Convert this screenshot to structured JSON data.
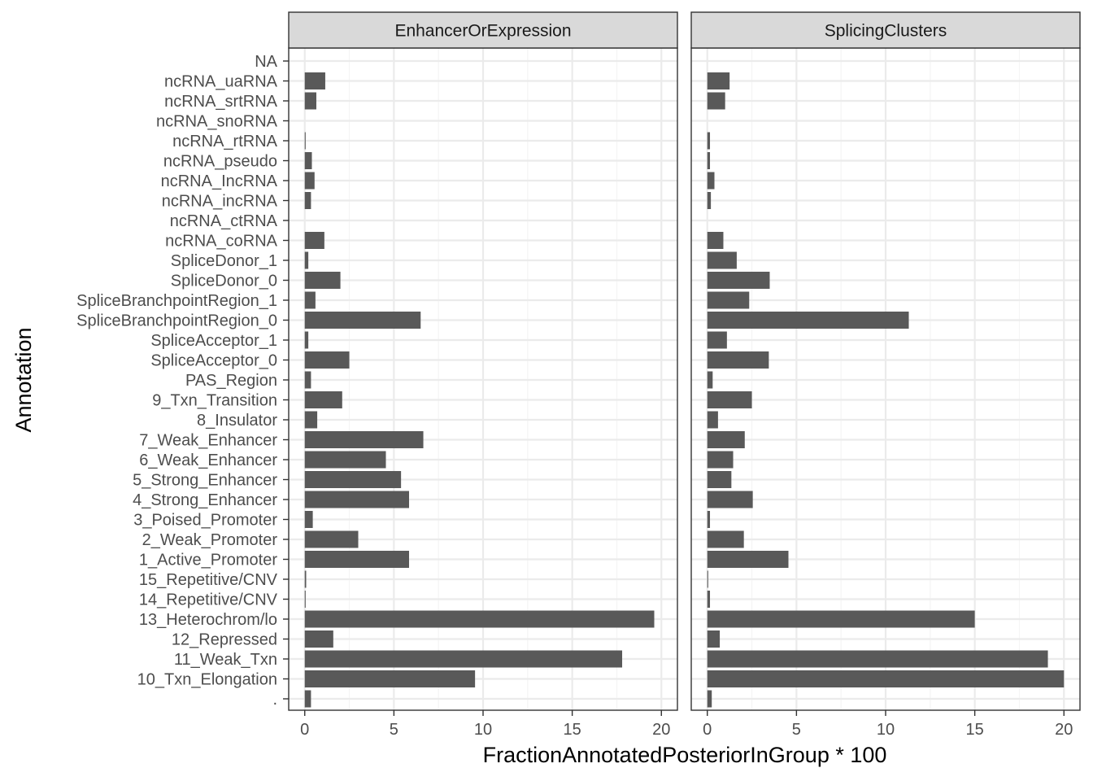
{
  "chart_data": {
    "type": "bar",
    "orientation": "horizontal",
    "facet": "columns",
    "xlabel": "FractionAnnotatedPosteriorInGroup * 100",
    "ylabel": "Annotation",
    "xlim": [
      0,
      20
    ],
    "x_ticks": [
      0,
      5,
      10,
      15,
      20
    ],
    "grid": true,
    "theme": "bw",
    "colors": {
      "bar": "#595959",
      "strip_bg": "#d9d9d9",
      "grid_major": "#ebebeb",
      "grid_minor": "#f5f5f5",
      "border": "#333333",
      "tick_label": "#4d4d4d"
    },
    "categories": [
      "NA",
      "ncRNA_uaRNA",
      "ncRNA_srtRNA",
      "ncRNA_snoRNA",
      "ncRNA_rtRNA",
      "ncRNA_pseudo",
      "ncRNA_IncRNA",
      "ncRNA_incRNA",
      "ncRNA_ctRNA",
      "ncRNA_coRNA",
      "SpliceDonor_1",
      "SpliceDonor_0",
      "SpliceBranchpointRegion_1",
      "SpliceBranchpointRegion_0",
      "SpliceAcceptor_1",
      "SpliceAcceptor_0",
      "PAS_Region",
      "9_Txn_Transition",
      "8_Insulator",
      "7_Weak_Enhancer",
      "6_Weak_Enhancer",
      "5_Strong_Enhancer",
      "4_Strong_Enhancer",
      "3_Poised_Promoter",
      "2_Weak_Promoter",
      "1_Active_Promoter",
      "15_Repetitive/CNV",
      "14_Repetitive/CNV",
      "13_Heterochrom/lo",
      "12_Repressed",
      "11_Weak_Txn",
      "10_Txn_Elongation",
      "."
    ],
    "panels": [
      {
        "name": "EnhancerOrExpression",
        "values": [
          0,
          1.15,
          0.65,
          0,
          0.05,
          0.4,
          0.55,
          0.35,
          0,
          1.1,
          0.2,
          2.0,
          0.6,
          6.5,
          0.2,
          2.5,
          0.35,
          2.1,
          0.7,
          6.65,
          4.55,
          5.4,
          5.85,
          0.45,
          3.0,
          5.85,
          0.08,
          0.05,
          19.6,
          1.6,
          17.8,
          9.55,
          0.35
        ]
      },
      {
        "name": "SplicingClusters",
        "values": [
          0,
          1.25,
          1.0,
          0,
          0.15,
          0.15,
          0.4,
          0.2,
          0,
          0.9,
          1.65,
          3.5,
          2.35,
          11.3,
          1.1,
          3.45,
          0.3,
          2.5,
          0.6,
          2.1,
          1.45,
          1.35,
          2.55,
          0.15,
          2.05,
          4.55,
          0.05,
          0.15,
          15.0,
          0.7,
          19.1,
          20.0,
          0.25
        ]
      }
    ]
  }
}
